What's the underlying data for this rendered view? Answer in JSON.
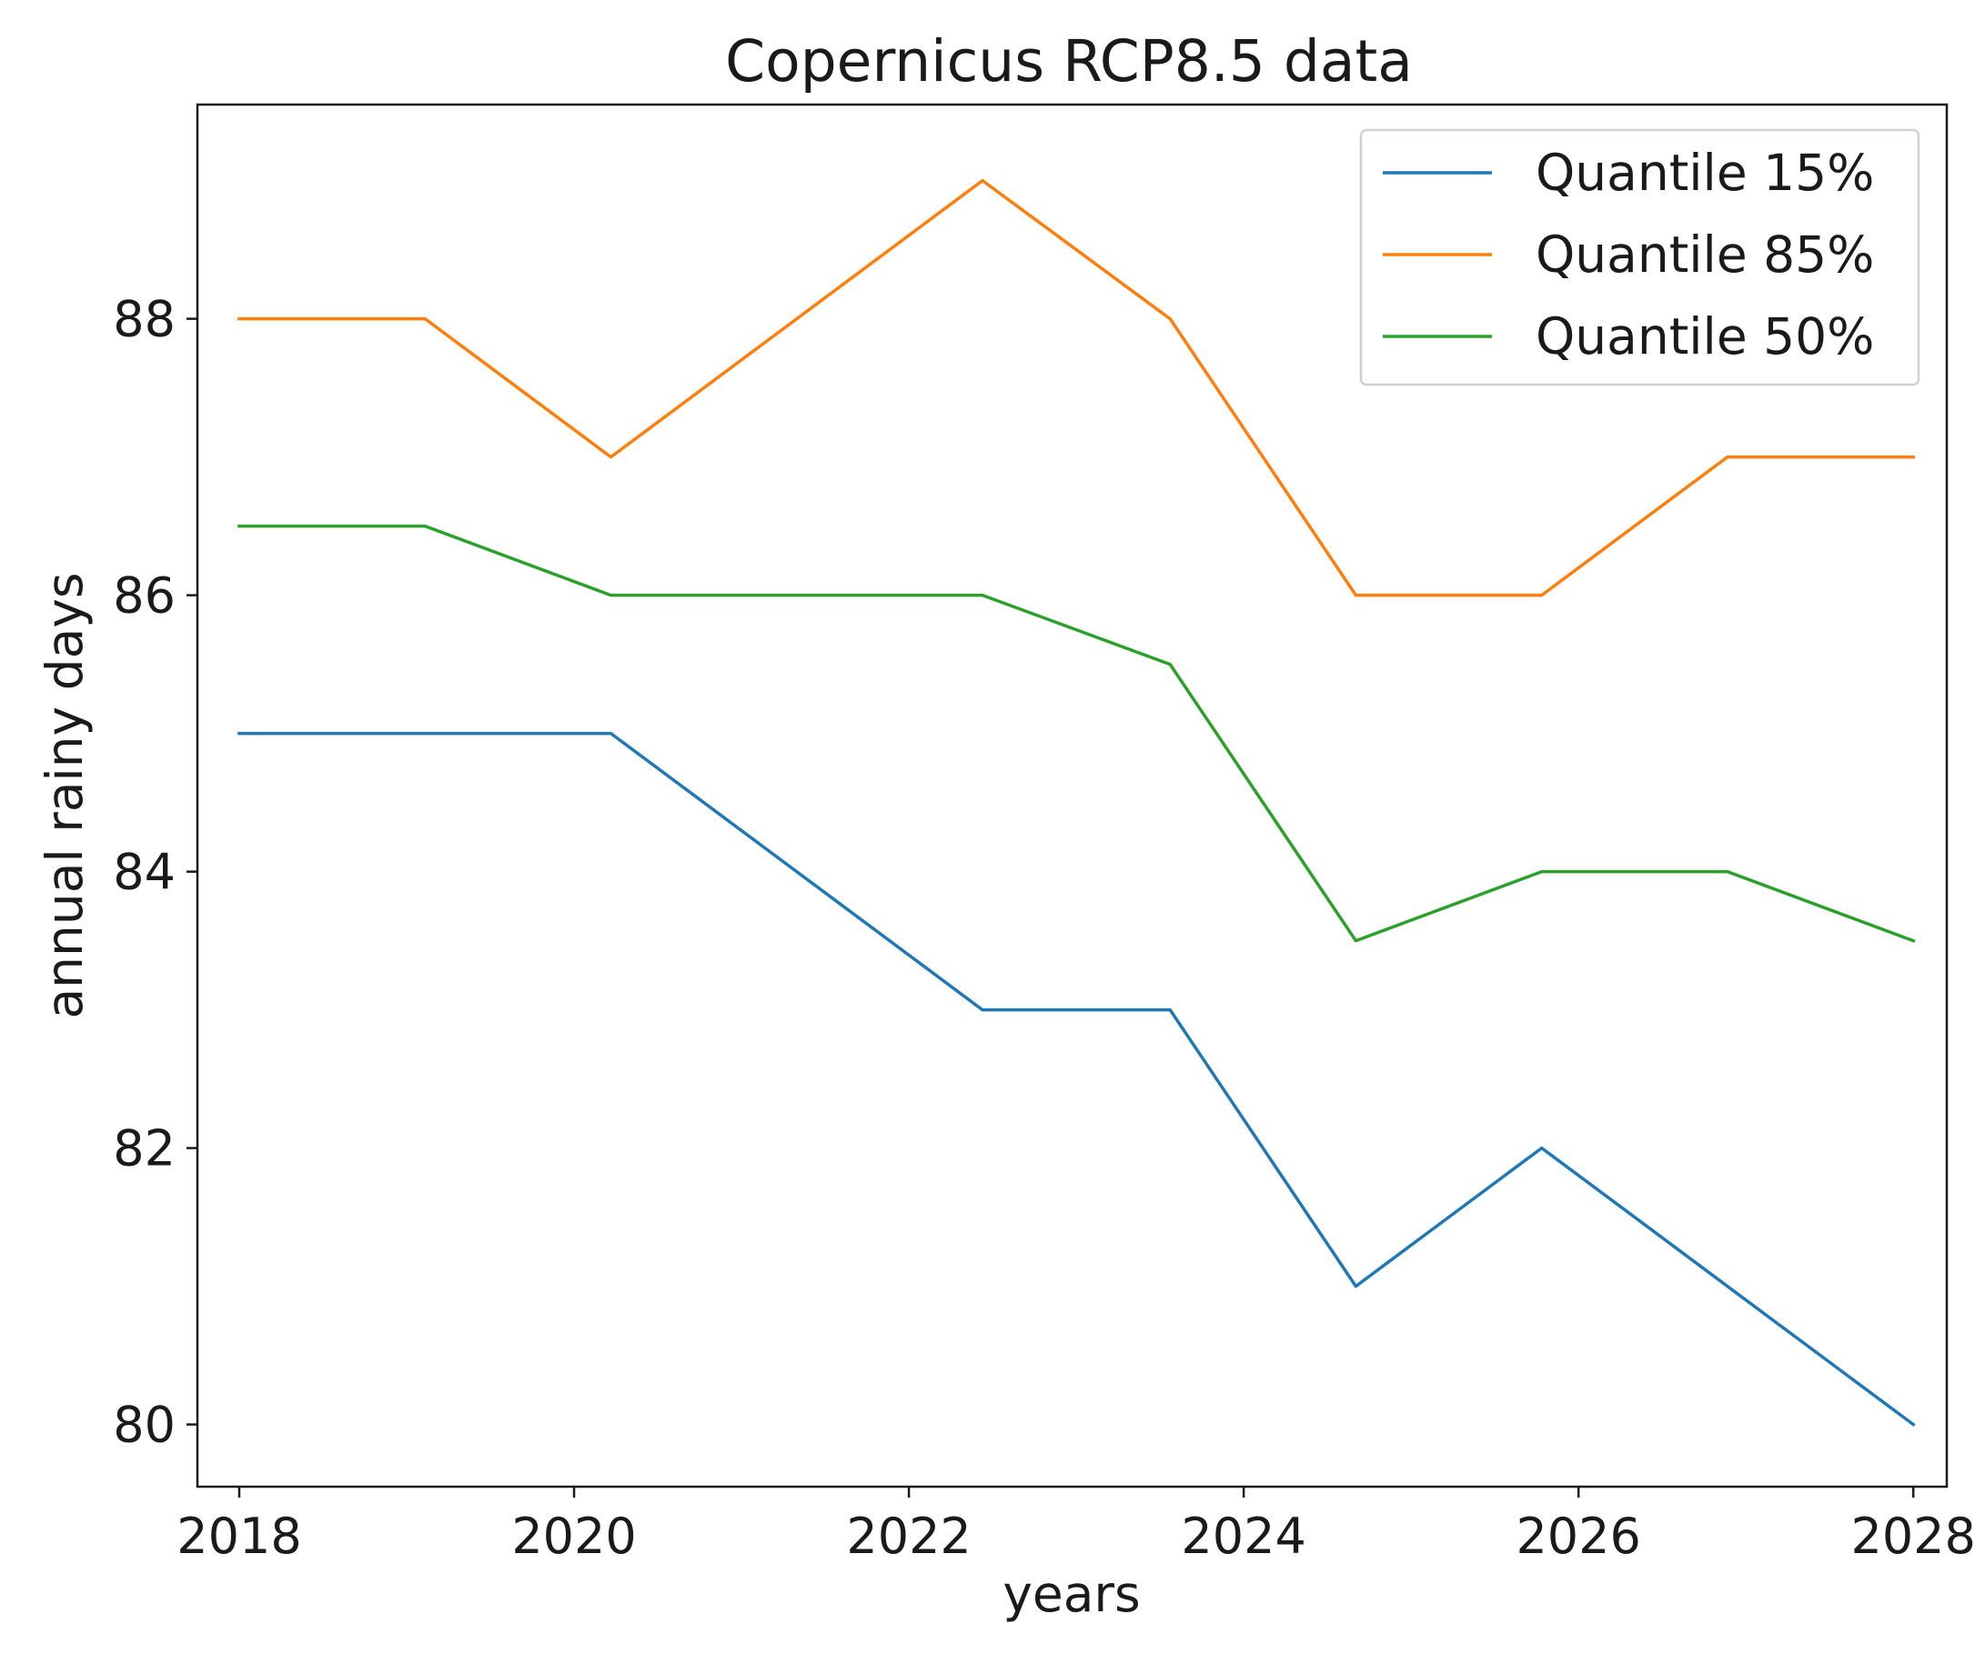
{
  "chart_data": {
    "type": "line",
    "title": "Copernicus RCP8.5 data",
    "xlabel": "years",
    "ylabel": "annual rainy days",
    "xlim": [
      2017.75,
      2028.2
    ],
    "ylim": [
      79.55,
      89.55
    ],
    "x_ticks": [
      2018,
      2020,
      2022,
      2024,
      2026,
      2028
    ],
    "x_tick_labels": [
      "2018",
      "2020",
      "2022",
      "2024",
      "2026",
      "2028"
    ],
    "y_ticks": [
      80,
      82,
      84,
      86,
      88
    ],
    "y_tick_labels": [
      "80",
      "82",
      "84",
      "86",
      "88"
    ],
    "x": [
      2018,
      2019.11,
      2020.22,
      2021.33,
      2022.44,
      2023.56,
      2024.67,
      2025.78,
      2026.89,
      2028
    ],
    "series": [
      {
        "name": "Quantile 15%",
        "color": "#1f77b4",
        "values": [
          85,
          85,
          85,
          84,
          83,
          83,
          81,
          82,
          81,
          80
        ]
      },
      {
        "name": "Quantile 85%",
        "color": "#ff7f0e",
        "values": [
          88,
          88,
          87,
          88,
          89,
          88,
          86,
          86,
          87,
          87
        ]
      },
      {
        "name": "Quantile 50%",
        "color": "#2ca02c",
        "values": [
          86.5,
          86.5,
          86,
          86,
          86,
          85.5,
          83.5,
          84,
          84,
          83.5
        ]
      }
    ],
    "grid": false,
    "legend_position": "top-right"
  }
}
